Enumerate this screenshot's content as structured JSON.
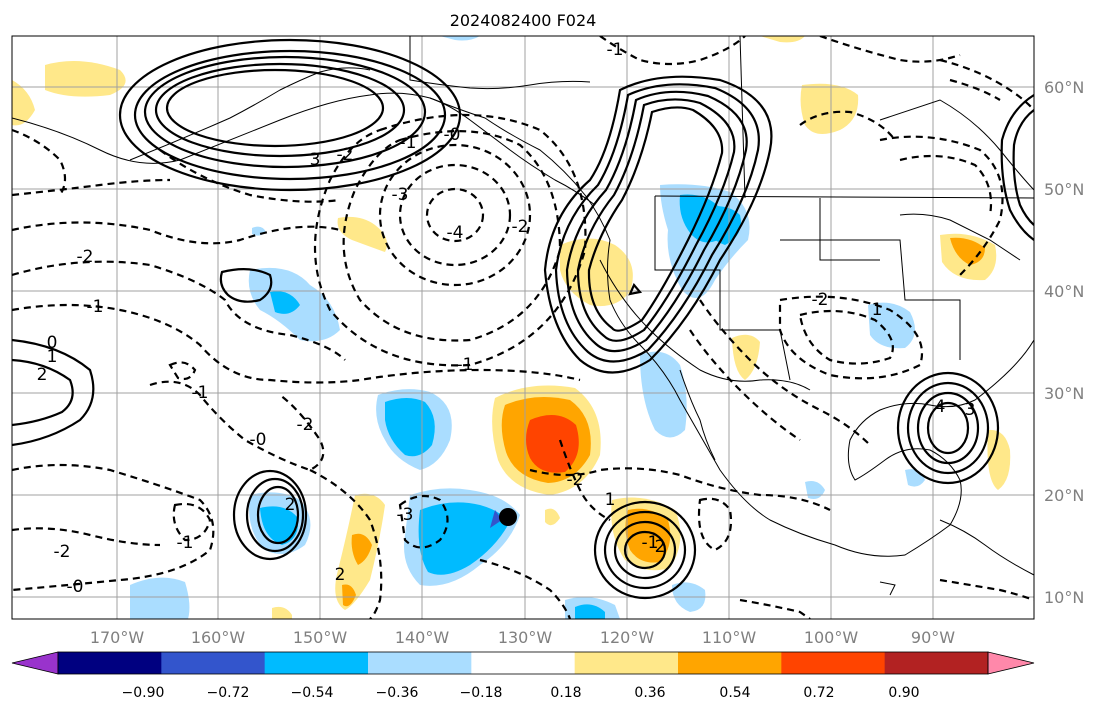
{
  "title": "2024082400 F024",
  "map": {
    "lon_labels": [
      "170°W",
      "160°W",
      "150°W",
      "140°W",
      "130°W",
      "120°W",
      "110°W",
      "100°W",
      "90°W"
    ],
    "lat_labels": [
      "60°N",
      "50°N",
      "40°N",
      "30°N",
      "20°N",
      "10°N"
    ],
    "extent": {
      "lon": [
        -178,
        -78
      ],
      "lat": [
        8,
        65
      ]
    },
    "grid": true
  },
  "colorbar": {
    "tick_labels": [
      "−0.90",
      "−0.72",
      "−0.54",
      "−0.36",
      "−0.18",
      "0.18",
      "0.36",
      "0.54",
      "0.72",
      "0.90"
    ],
    "colors": [
      "#9933cc",
      "#000080",
      "#3355cc",
      "#00bbff",
      "#aaddff",
      "#ffffff",
      "#ffe88a",
      "#ffa500",
      "#ff4400",
      "#b22222",
      "#ff88aa"
    ],
    "extend": "both"
  },
  "contour_labels": [
    "-1",
    "3",
    "-2",
    "-1",
    "-0",
    "-3",
    "-4",
    "-2",
    "-1",
    "0",
    "1",
    "2",
    "-2",
    "-1",
    "-0",
    "-2",
    "2",
    "-2",
    "-1",
    "-0",
    "-3",
    "2",
    "1",
    "-1",
    "-2",
    "2",
    "-2",
    "1",
    "4",
    "3",
    "-1"
  ]
}
